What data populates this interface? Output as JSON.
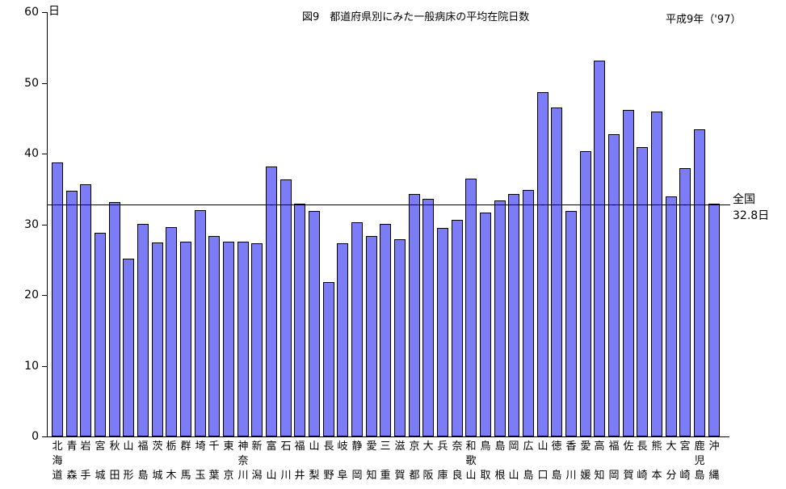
{
  "title": "図9　都道府県別にみた一般病床の平均在院日数",
  "year_label": "平成9年（'97）",
  "y_axis": {
    "unit": "日",
    "ticks": [
      0,
      10,
      20,
      30,
      40,
      50,
      60
    ],
    "min": 0,
    "max": 60
  },
  "national_average": {
    "label_line1": "全国",
    "label_line2": "32.8日",
    "value": 32.8
  },
  "colors": {
    "bar_fill": "#7c7cf6",
    "bar_border": "#000000",
    "axis": "#000000",
    "background": "#ffffff"
  },
  "chart_data": {
    "type": "bar",
    "title": "図9　都道府県別にみた一般病床の平均在院日数",
    "subtitle": "平成9年（'97）",
    "xlabel": "",
    "ylabel": "日",
    "ylim": [
      0,
      60
    ],
    "grid": false,
    "legend_position": "none",
    "reference_line": {
      "label": "全国",
      "value": 32.8
    },
    "categories": [
      "北海道",
      "青森",
      "岩手",
      "宮城",
      "秋田",
      "山形",
      "福島",
      "茨城",
      "栃木",
      "群馬",
      "埼玉",
      "千葉",
      "東京",
      "神奈川",
      "新潟",
      "富山",
      "石川",
      "福井",
      "山梨",
      "長野",
      "岐阜",
      "静岡",
      "愛知",
      "三重",
      "滋賀",
      "京都",
      "大阪",
      "兵庫",
      "奈良",
      "和歌山",
      "鳥取",
      "島根",
      "岡山",
      "広島",
      "山口",
      "徳島",
      "香川",
      "愛媛",
      "高知",
      "福岡",
      "佐賀",
      "長崎",
      "熊本",
      "大分",
      "宮崎",
      "鹿児島",
      "沖縄"
    ],
    "values": [
      38.7,
      34.8,
      35.7,
      28.8,
      33.2,
      25.2,
      30.1,
      27.4,
      29.6,
      27.5,
      32.0,
      28.4,
      27.5,
      27.5,
      27.3,
      38.2,
      36.4,
      32.9,
      31.9,
      21.8,
      27.3,
      30.3,
      28.4,
      30.1,
      27.9,
      34.3,
      33.6,
      29.5,
      30.6,
      36.5,
      31.7,
      33.4,
      34.3,
      34.9,
      48.7,
      46.5,
      31.9,
      40.3,
      53.2,
      42.8,
      46.2,
      40.9,
      45.9,
      34.0,
      38.0,
      43.4,
      32.9
    ]
  }
}
